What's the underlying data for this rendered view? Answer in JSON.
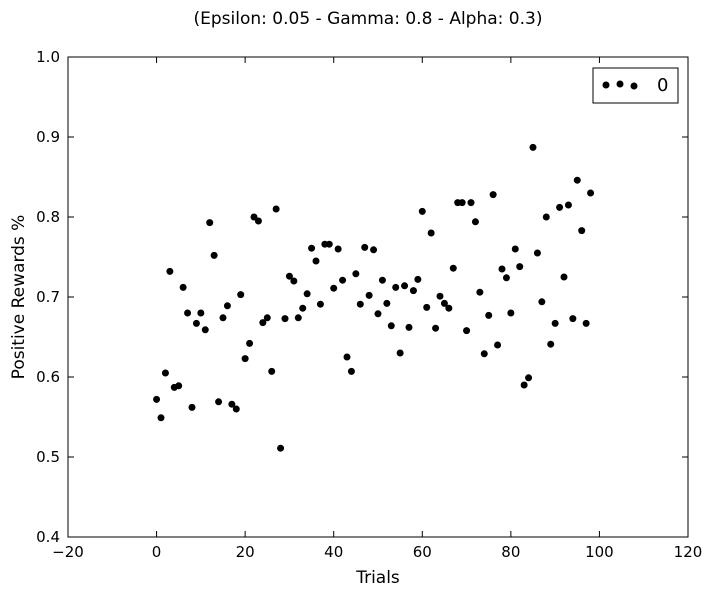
{
  "chart_data": {
    "type": "scatter",
    "title": "(Epsilon: 0.05 - Gamma: 0.8 - Alpha: 0.3)",
    "xlabel": "Trials",
    "ylabel": "Positive Rewards %",
    "xlim": [
      -20,
      120
    ],
    "ylim": [
      0.4,
      1.0
    ],
    "xticks": [
      "−20",
      "0",
      "20",
      "40",
      "60",
      "80",
      "100",
      "120"
    ],
    "yticks": [
      "0.4",
      "0.5",
      "0.6",
      "0.7",
      "0.8",
      "0.9",
      "1.0"
    ],
    "grid": false,
    "legend_position": "top-right",
    "marker_color": "#000000",
    "series": [
      {
        "name": "0",
        "x": [
          0,
          1,
          2,
          3,
          4,
          5,
          6,
          7,
          8,
          9,
          10,
          11,
          12,
          13,
          14,
          15,
          16,
          17,
          18,
          19,
          20,
          21,
          22,
          23,
          24,
          25,
          26,
          27,
          28,
          29,
          30,
          31,
          32,
          33,
          34,
          35,
          36,
          37,
          38,
          39,
          40,
          41,
          42,
          43,
          44,
          45,
          46,
          47,
          48,
          49,
          50,
          51,
          52,
          53,
          54,
          55,
          56,
          57,
          58,
          59,
          60,
          61,
          62,
          63,
          64,
          65,
          66,
          67,
          68,
          69,
          70,
          71,
          72,
          73,
          74,
          75,
          76,
          77,
          78,
          79,
          80,
          81,
          82,
          83,
          84,
          85,
          86,
          87,
          88,
          89,
          90,
          91,
          92,
          93,
          94,
          95,
          96,
          97,
          98
        ],
        "y": [
          0.572,
          0.549,
          0.605,
          0.732,
          0.587,
          0.589,
          0.712,
          0.68,
          0.562,
          0.667,
          0.68,
          0.659,
          0.793,
          0.752,
          0.569,
          0.674,
          0.689,
          0.566,
          0.56,
          0.703,
          0.623,
          0.642,
          0.8,
          0.795,
          0.668,
          0.674,
          0.607,
          0.81,
          0.511,
          0.673,
          0.726,
          0.72,
          0.674,
          0.686,
          0.704,
          0.761,
          0.745,
          0.691,
          0.766,
          0.766,
          0.711,
          0.76,
          0.721,
          0.625,
          0.607,
          0.729,
          0.691,
          0.762,
          0.702,
          0.759,
          0.679,
          0.721,
          0.692,
          0.664,
          0.712,
          0.63,
          0.714,
          0.662,
          0.708,
          0.722,
          0.807,
          0.687,
          0.78,
          0.661,
          0.701,
          0.692,
          0.686,
          0.736,
          0.818,
          0.818,
          0.658,
          0.818,
          0.794,
          0.706,
          0.629,
          0.677,
          0.828,
          0.64,
          0.735,
          0.724,
          0.68,
          0.76,
          0.738,
          0.59,
          0.599,
          0.887,
          0.755,
          0.694,
          0.8,
          0.641,
          0.667,
          0.812,
          0.725,
          0.815,
          0.673,
          0.846,
          0.783,
          0.667,
          0.83
        ]
      }
    ]
  }
}
